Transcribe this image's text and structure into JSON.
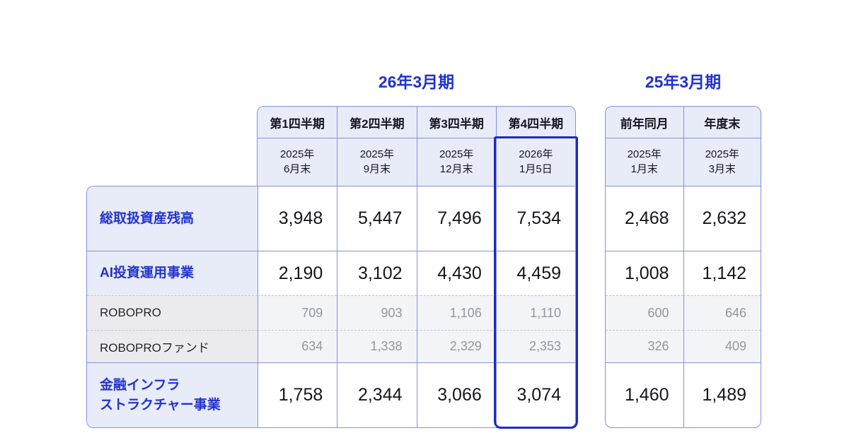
{
  "meta": {
    "background": "#ffffff"
  },
  "colors": {
    "accent_blue": "#2233cf",
    "highlight_border": "#1e2cb8",
    "grid_border": "#8890e0",
    "dashed_separator": "#c2c4cf",
    "header_background": "#e8ebf8",
    "sub_row_label_background": "#ebebef",
    "sub_row_value_background": "#f3f4f8",
    "text_dark": "#17171f",
    "text_gray": "#94969f"
  },
  "fy26": {
    "title": "26年3月期",
    "columns": [
      {
        "period": "第1四半期",
        "date": "2025年\n6月末"
      },
      {
        "period": "第2四半期",
        "date": "2025年\n9月末"
      },
      {
        "period": "第3四半期",
        "date": "2025年\n12月末"
      },
      {
        "period": "第4四半期",
        "date": "2026年\n1月5日"
      }
    ]
  },
  "fy25": {
    "title": "25年3月期",
    "columns": [
      {
        "period": "前年同月",
        "date": "2025年\n1月末"
      },
      {
        "period": "年度末",
        "date": "2025年\n3月末"
      }
    ]
  },
  "rows": [
    {
      "label": "総取扱資産残高",
      "style": "primary",
      "fy26": [
        "3,948",
        "5,447",
        "7,496",
        "7,534"
      ],
      "fy25": [
        "2,468",
        "2,632"
      ]
    },
    {
      "label": "AI投資運用事業",
      "style": "primary",
      "fy26": [
        "2,190",
        "3,102",
        "4,430",
        "4,459"
      ],
      "fy25": [
        "1,008",
        "1,142"
      ]
    },
    {
      "label": "ROBOPRO",
      "style": "sub",
      "fy26": [
        "709",
        "903",
        "1,106",
        "1,110"
      ],
      "fy25": [
        "600",
        "646"
      ]
    },
    {
      "label": "ROBOPROファンド",
      "style": "sub",
      "fy26": [
        "634",
        "1,338",
        "2,329",
        "2,353"
      ],
      "fy25": [
        "326",
        "409"
      ]
    },
    {
      "label": "金融インフラ\nストラクチャー事業",
      "style": "primary",
      "fy26": [
        "1,758",
        "2,344",
        "3,066",
        "3,074"
      ],
      "fy25": [
        "1,460",
        "1,489"
      ]
    }
  ],
  "highlight": {
    "group": "26年3月期",
    "period": "第4四半期",
    "date": "2026年1月5日"
  },
  "chart_data": {
    "type": "table",
    "column_groups": [
      {
        "title": "26年3月期",
        "columns": [
          "第1四半期 (2025年6月末)",
          "第2四半期 (2025年9月末)",
          "第3四半期 (2025年12月末)",
          "第4四半期 (2026年1月5日)"
        ]
      },
      {
        "title": "25年3月期",
        "columns": [
          "前年同月 (2025年1月末)",
          "年度末 (2025年3月末)"
        ]
      }
    ],
    "rows": [
      {
        "label": "総取扱資産残高",
        "values": [
          3948,
          5447,
          7496,
          7534,
          2468,
          2632
        ]
      },
      {
        "label": "AI投資運用事業",
        "values": [
          2190,
          3102,
          4430,
          4459,
          1008,
          1142
        ]
      },
      {
        "label": "ROBOPRO",
        "values": [
          709,
          903,
          1106,
          1110,
          600,
          646
        ]
      },
      {
        "label": "ROBOPROファンド",
        "values": [
          634,
          1338,
          2329,
          2353,
          326,
          409
        ]
      },
      {
        "label": "金融インフラストラクチャー事業",
        "values": [
          1758,
          2344,
          3066,
          3074,
          1460,
          1489
        ]
      }
    ],
    "highlighted_column": "第4四半期 (2026年1月5日)",
    "legend_position": "none",
    "grid": true
  }
}
